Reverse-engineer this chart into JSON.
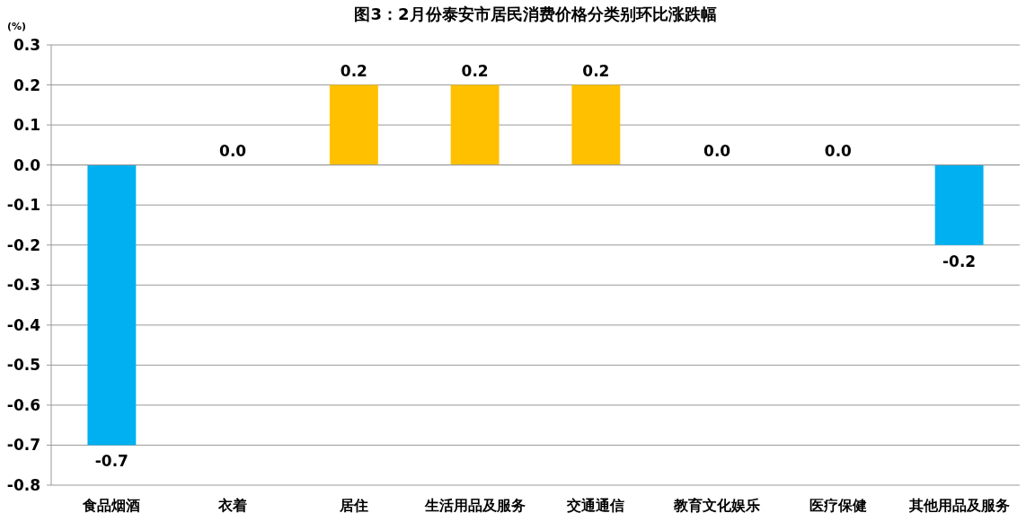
{
  "chart_data": {
    "type": "bar",
    "title": "图3：2月份泰安市居民消费价格分类别环比涨跌幅",
    "ylabel": "(%)",
    "categories": [
      "食品烟酒",
      "衣着",
      "居住",
      "生活用品及服务",
      "交通通信",
      "教育文化娱乐",
      "医疗保健",
      "其他用品及服务"
    ],
    "values": [
      -0.7,
      0,
      0.2,
      0.2,
      0.2,
      0,
      0,
      -0.2
    ],
    "colors": [
      "#00b0f0",
      "#00b0f0",
      "#ffc000",
      "#ffc000",
      "#ffc000",
      "#00b0f0",
      "#00b0f0",
      "#00b0f0"
    ],
    "value_labels": [
      "-0.7",
      "0.0",
      "0.2",
      "0.2",
      "0.2",
      "0.0",
      "0.0",
      "-0.2"
    ],
    "ylim": [
      -0.8,
      0.3
    ],
    "yticks": [
      0.3,
      0.2,
      0.1,
      {
        "value": 0,
        "label": "0.0"
      },
      -0.1,
      -0.2,
      -0.3,
      -0.4,
      -0.5,
      -0.6,
      -0.7,
      -0.8
    ],
    "grid": "y"
  }
}
